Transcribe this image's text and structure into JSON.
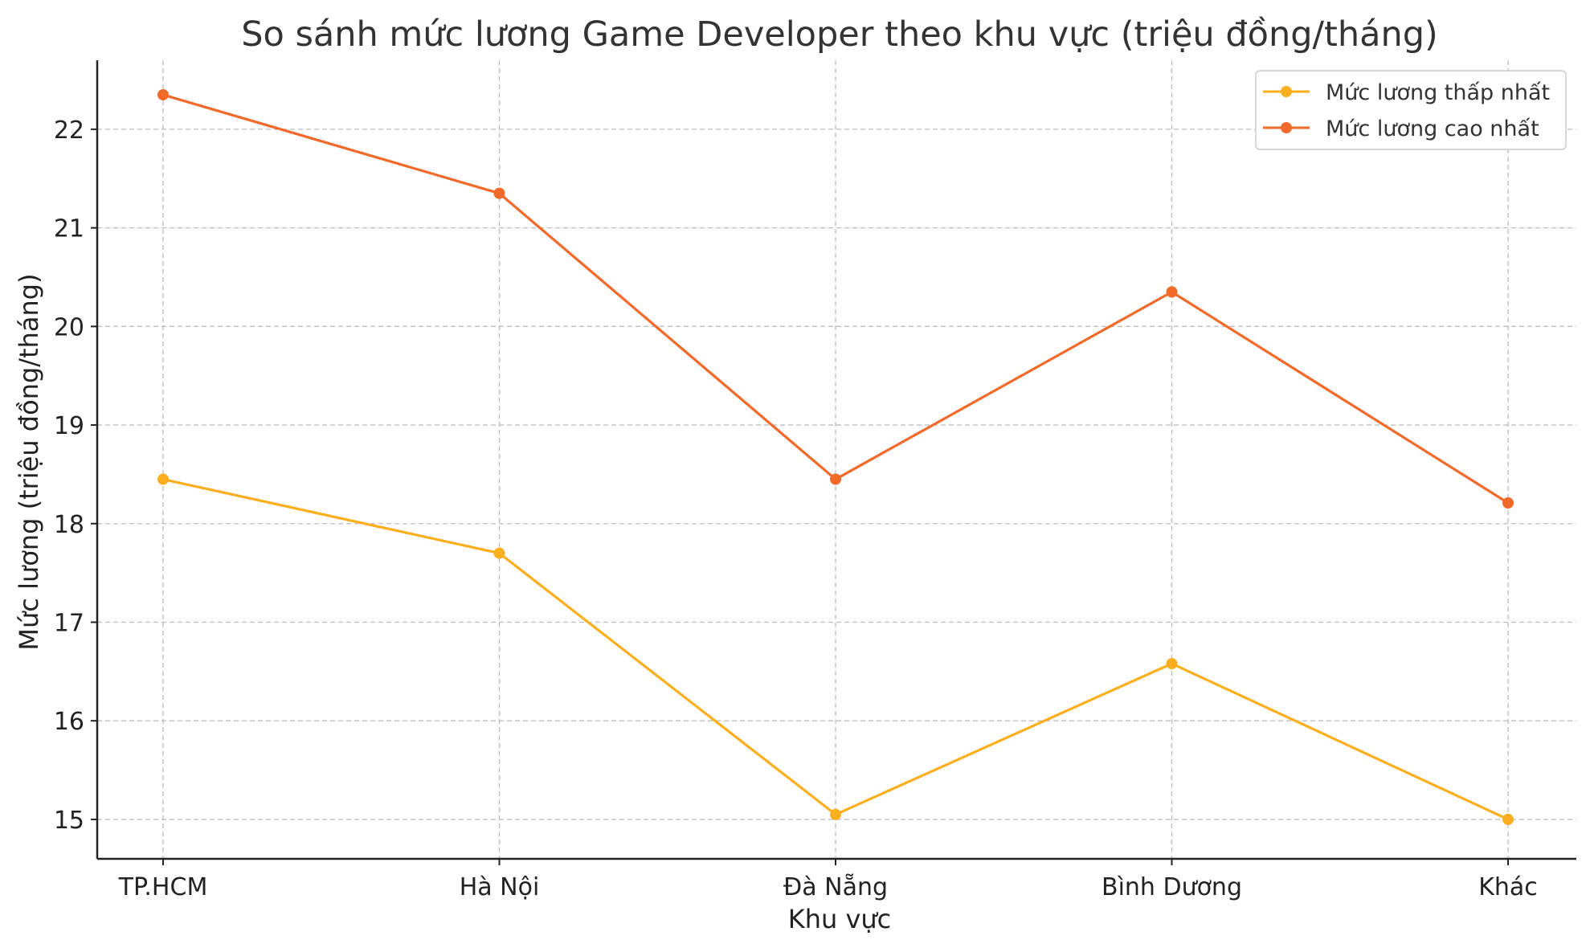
{
  "chart_data": {
    "type": "line",
    "title": "So sánh mức lương Game Developer theo khu vực (triệu đồng/tháng)",
    "xlabel": "Khu vực",
    "ylabel": "Mức lương (triệu đồng/tháng)",
    "categories": [
      "TP.HCM",
      "Hà Nội",
      "Đà Nẵng",
      "Bình Dương",
      "Khác"
    ],
    "ylim": [
      14.6,
      22.7
    ],
    "yticks": [
      15,
      16,
      17,
      18,
      19,
      20,
      21,
      22
    ],
    "grid": true,
    "legend_position": "top-right",
    "series": [
      {
        "name": "Mức lương thấp nhất",
        "color": "#FBAF1F",
        "values": [
          18.45,
          17.7,
          15.05,
          16.58,
          15.0
        ]
      },
      {
        "name": "Mức lương cao nhất",
        "color": "#F26A2A",
        "values": [
          22.35,
          21.35,
          18.45,
          20.35,
          18.21
        ]
      }
    ]
  }
}
